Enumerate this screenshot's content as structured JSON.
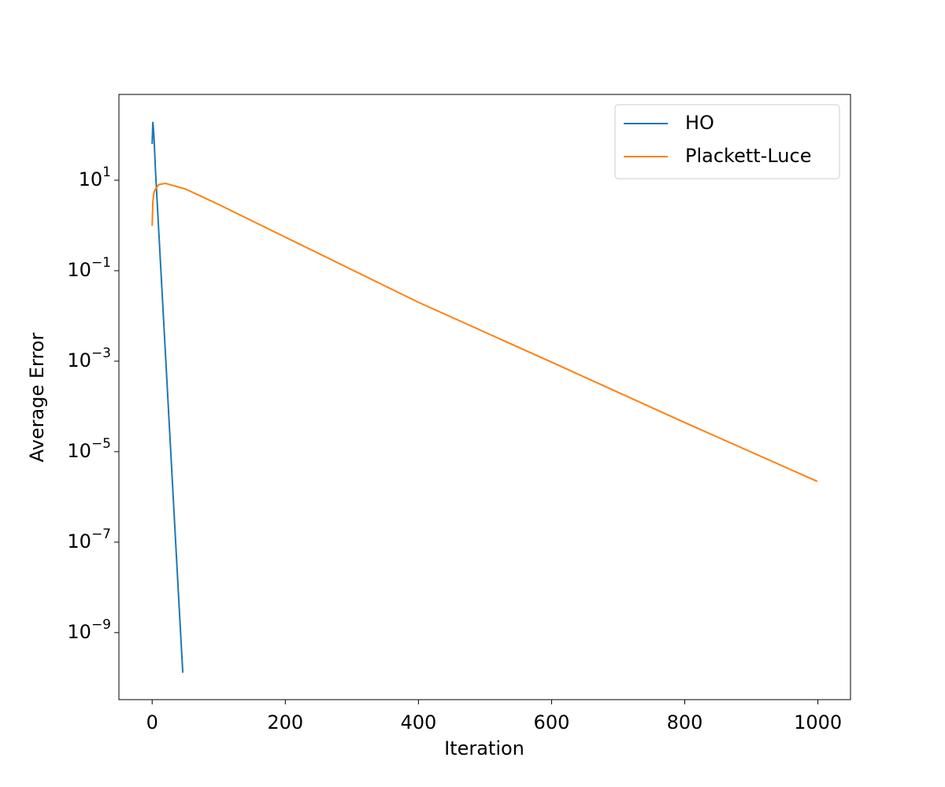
{
  "chart_data": {
    "type": "line",
    "log_y": true,
    "xlabel": "Iteration",
    "ylabel": "Average Error",
    "xlim": [
      -49.95,
      1048.95
    ],
    "xticks": [
      0,
      200,
      400,
      600,
      800,
      1000
    ],
    "ylim": [
      3.3e-11,
      787
    ],
    "yticks": [
      {
        "value": 10,
        "label": "10^1"
      },
      {
        "value": 0.1,
        "label": "10^−1"
      },
      {
        "value": 0.001,
        "label": "10^−3"
      },
      {
        "value": 1e-05,
        "label": "10^−5"
      },
      {
        "value": 1e-07,
        "label": "10^−7"
      },
      {
        "value": 1e-09,
        "label": "10^−9"
      }
    ],
    "legend": "upper right",
    "series": [
      {
        "name": "HO",
        "color": "#1f77b4",
        "x": [
          0,
          1,
          2,
          3,
          5,
          10,
          20,
          30,
          40,
          46
        ],
        "values": [
          63,
          195,
          130,
          75,
          16,
          0.7,
          0.0014,
          2.7e-06,
          5.2e-09,
          1.3e-10
        ]
      },
      {
        "name": "Plackett-Luce",
        "color": "#ff7f0e",
        "x": [
          0,
          1,
          2,
          3,
          5,
          10,
          20,
          50,
          100,
          200,
          400,
          600,
          800,
          999
        ],
        "values": [
          0.98,
          3.2,
          4.5,
          5.5,
          6.4,
          8.0,
          8.5,
          6.4,
          2.9,
          0.55,
          0.02,
          0.00095,
          4.4e-05,
          2.2e-06
        ]
      }
    ]
  }
}
